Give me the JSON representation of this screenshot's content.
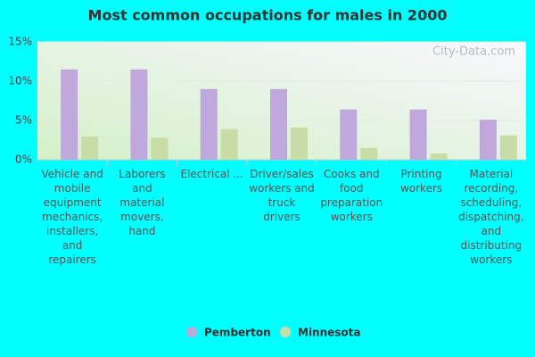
{
  "chart_data": {
    "type": "bar",
    "title": "Most common occupations for males in 2000",
    "watermark": "City-Data.com",
    "categories": [
      "Vehicle and mobile equipment mechanics, installers, and repairers",
      "Laborers and material movers, hand",
      "Electrical ...",
      "Driver/sales workers and truck drivers",
      "Cooks and food preparation workers",
      "Printing workers",
      "Material recording, scheduling, dispatching, and distributing workers"
    ],
    "series": [
      {
        "name": "Pemberton",
        "color": "#c0a8dc",
        "values": [
          11.5,
          11.5,
          9.0,
          9.0,
          6.4,
          6.4,
          5.1
        ]
      },
      {
        "name": "Minnesota",
        "color": "#c8dca8",
        "values": [
          2.95,
          2.8,
          3.9,
          4.1,
          1.5,
          0.8,
          3.1
        ]
      }
    ],
    "ylim": [
      0,
      15
    ],
    "yticks": [
      {
        "value": 0,
        "label": "0%"
      },
      {
        "value": 5,
        "label": "5%"
      },
      {
        "value": 10,
        "label": "10%"
      },
      {
        "value": 15,
        "label": "15%"
      }
    ],
    "grid": true
  }
}
